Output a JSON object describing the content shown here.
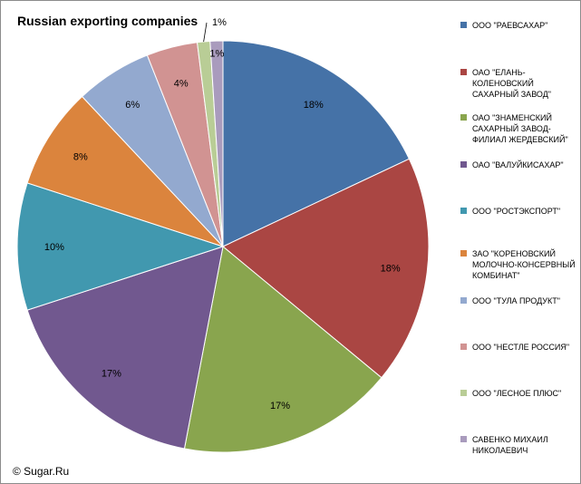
{
  "chart_data": {
    "type": "pie",
    "title": "Russian exporting companies",
    "slices": [
      {
        "label": "ООО \"РАЕВСАХАР\"",
        "value": 18,
        "pct_label": "18%",
        "color": "#4572A7"
      },
      {
        "label": "ОАО \"ЕЛАНЬ-КОЛЕНОВСКИЙ САХАРНЫЙ ЗАВОД\"",
        "value": 18,
        "pct_label": "18%",
        "color": "#AA4643"
      },
      {
        "label": "ОАО \"ЗНАМЕНСКИЙ САХАРНЫЙ ЗАВОД-ФИЛИАЛ ЖЕРДЕВСКИЙ\"",
        "value": 17,
        "pct_label": "17%",
        "color": "#89A54E"
      },
      {
        "label": "ОАО \"ВАЛУЙКИСАХАР\"",
        "value": 17,
        "pct_label": "17%",
        "color": "#71588F"
      },
      {
        "label": "ООО \"РОСТЭКСПОРТ\"",
        "value": 10,
        "pct_label": "10%",
        "color": "#4198AF"
      },
      {
        "label": "ЗАО \"КОРЕНОВСКИЙ МОЛОЧНО-КОНСЕРВНЫЙ КОМБИНАТ\"",
        "value": 8,
        "pct_label": "8%",
        "color": "#DB843D"
      },
      {
        "label": "ООО \"ТУЛА ПРОДУКТ\"",
        "value": 6,
        "pct_label": "6%",
        "color": "#93A9CF"
      },
      {
        "label": "ООО \"НЕСТЛЕ РОССИЯ\"",
        "value": 4,
        "pct_label": "4%",
        "color": "#D19392"
      },
      {
        "label": "ООО \"ЛЕСНОЕ ПЛЮС\"",
        "value": 1,
        "pct_label": "1%",
        "color": "#B9CD96"
      },
      {
        "label": "САВЕНКО МИХАИЛ НИКОЛАЕВИЧ",
        "value": 1,
        "pct_label": "1%",
        "color": "#A99BBD"
      }
    ]
  },
  "credit": "© Sugar.Ru"
}
